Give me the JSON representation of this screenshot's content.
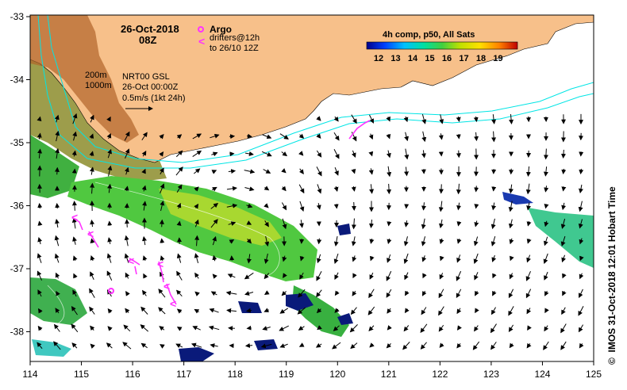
{
  "map": {
    "date_line1": "26-Oct-2018",
    "date_line2": "08Z",
    "argo_label": "Argo",
    "drifters_label_1": "drifters@12h",
    "drifters_label_2": "to 26/10 12Z",
    "depth_200": "200m",
    "depth_1000": "1000m",
    "nrt_line1": "NRT00 GSL",
    "nrt_line2": "26-Oct 00:00Z",
    "scale_label": "0.5m/s (1kt 24h)",
    "colorbar_title": "4h comp, p50, All Sats",
    "colorbar_ticks": [
      "12",
      "13",
      "14",
      "15",
      "16",
      "17",
      "18",
      "19"
    ],
    "credit": "IMOS 31-Oct-2018 12:01 Hobart Time",
    "copyright_symbol": "©",
    "x_ticks": [
      "114",
      "115",
      "116",
      "117",
      "118",
      "119",
      "120",
      "121",
      "122",
      "123",
      "124",
      "125"
    ],
    "y_ticks": [
      "-33",
      "-34",
      "-35",
      "-36",
      "-37",
      "-38"
    ],
    "colors": {
      "land": "#f7c08a",
      "depth_contour": "#00e5e5",
      "drifter": "#ff33ff",
      "vector": "#000000",
      "sst_green": "#55c83c",
      "sst_dark": "#0a1a7a"
    },
    "icons": [
      "argo-float-icon",
      "drifter-track-icon",
      "velocity-arrow-icon"
    ]
  }
}
